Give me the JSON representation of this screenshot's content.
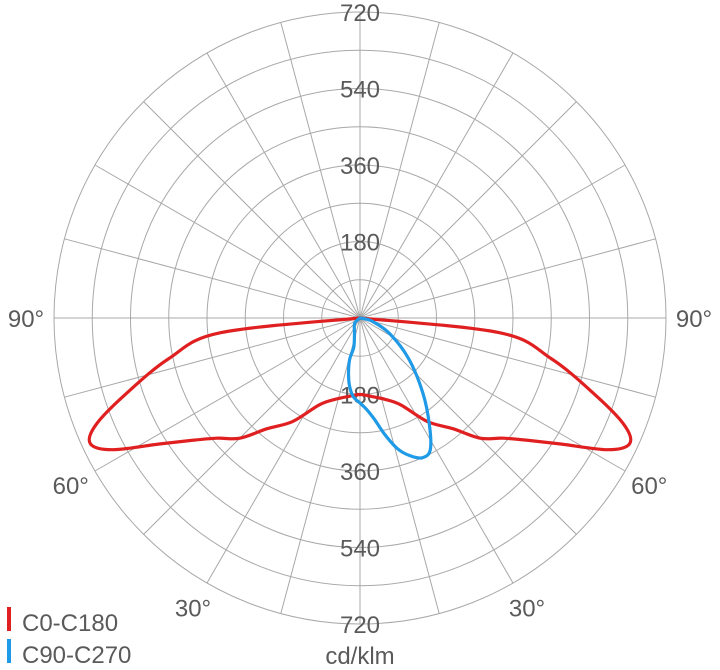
{
  "chart_data": {
    "type": "polar",
    "unit_label": "cd/klm",
    "r_max": 720,
    "radial_ticks": [
      180,
      360,
      540,
      720
    ],
    "radial_tick_labels": [
      "180",
      "360",
      "540",
      "720"
    ],
    "angle_labels": [
      "90°",
      "60°",
      "30°"
    ],
    "legend_position": "bottom-left",
    "series": [
      {
        "name": "C0-C180",
        "color": "#e02020",
        "points": [
          {
            "angle": -90,
            "r": 0
          },
          {
            "angle": -84,
            "r": 330
          },
          {
            "angle": -78,
            "r": 460
          },
          {
            "angle": -72,
            "r": 580
          },
          {
            "angle": -68,
            "r": 670
          },
          {
            "angle": -65,
            "r": 700
          },
          {
            "angle": -62,
            "r": 660
          },
          {
            "angle": -58,
            "r": 560
          },
          {
            "angle": -54,
            "r": 490
          },
          {
            "angle": -50,
            "r": 440
          },
          {
            "angle": -45,
            "r": 400
          },
          {
            "angle": -40,
            "r": 340
          },
          {
            "angle": -33,
            "r": 290
          },
          {
            "angle": -25,
            "r": 225
          },
          {
            "angle": -17,
            "r": 200
          },
          {
            "angle": -8,
            "r": 186
          },
          {
            "angle": 0,
            "r": 180
          },
          {
            "angle": 8,
            "r": 186
          },
          {
            "angle": 17,
            "r": 200
          },
          {
            "angle": 25,
            "r": 225
          },
          {
            "angle": 33,
            "r": 290
          },
          {
            "angle": 40,
            "r": 340
          },
          {
            "angle": 45,
            "r": 400
          },
          {
            "angle": 50,
            "r": 440
          },
          {
            "angle": 54,
            "r": 490
          },
          {
            "angle": 58,
            "r": 560
          },
          {
            "angle": 62,
            "r": 660
          },
          {
            "angle": 65,
            "r": 700
          },
          {
            "angle": 68,
            "r": 670
          },
          {
            "angle": 72,
            "r": 580
          },
          {
            "angle": 78,
            "r": 460
          },
          {
            "angle": 84,
            "r": 330
          },
          {
            "angle": 90,
            "r": 0
          }
        ]
      },
      {
        "name": "C90-C270",
        "color": "#1f9ae6",
        "points": [
          {
            "angle": -90,
            "r": 0
          },
          {
            "angle": -45,
            "r": 18
          },
          {
            "angle": -20,
            "r": 38
          },
          {
            "angle": -12,
            "r": 70
          },
          {
            "angle": -14,
            "r": 100
          },
          {
            "angle": -12,
            "r": 130
          },
          {
            "angle": -9,
            "r": 160
          },
          {
            "angle": -5,
            "r": 185
          },
          {
            "angle": 0,
            "r": 200
          },
          {
            "angle": 4,
            "r": 215
          },
          {
            "angle": 8,
            "r": 240
          },
          {
            "angle": 12,
            "r": 280
          },
          {
            "angle": 16,
            "r": 320
          },
          {
            "angle": 20,
            "r": 345
          },
          {
            "angle": 24,
            "r": 360
          },
          {
            "angle": 28,
            "r": 352
          },
          {
            "angle": 33,
            "r": 300
          },
          {
            "angle": 40,
            "r": 230
          },
          {
            "angle": 50,
            "r": 150
          },
          {
            "angle": 62,
            "r": 80
          },
          {
            "angle": 75,
            "r": 30
          },
          {
            "angle": 90,
            "r": 0
          }
        ]
      }
    ]
  }
}
